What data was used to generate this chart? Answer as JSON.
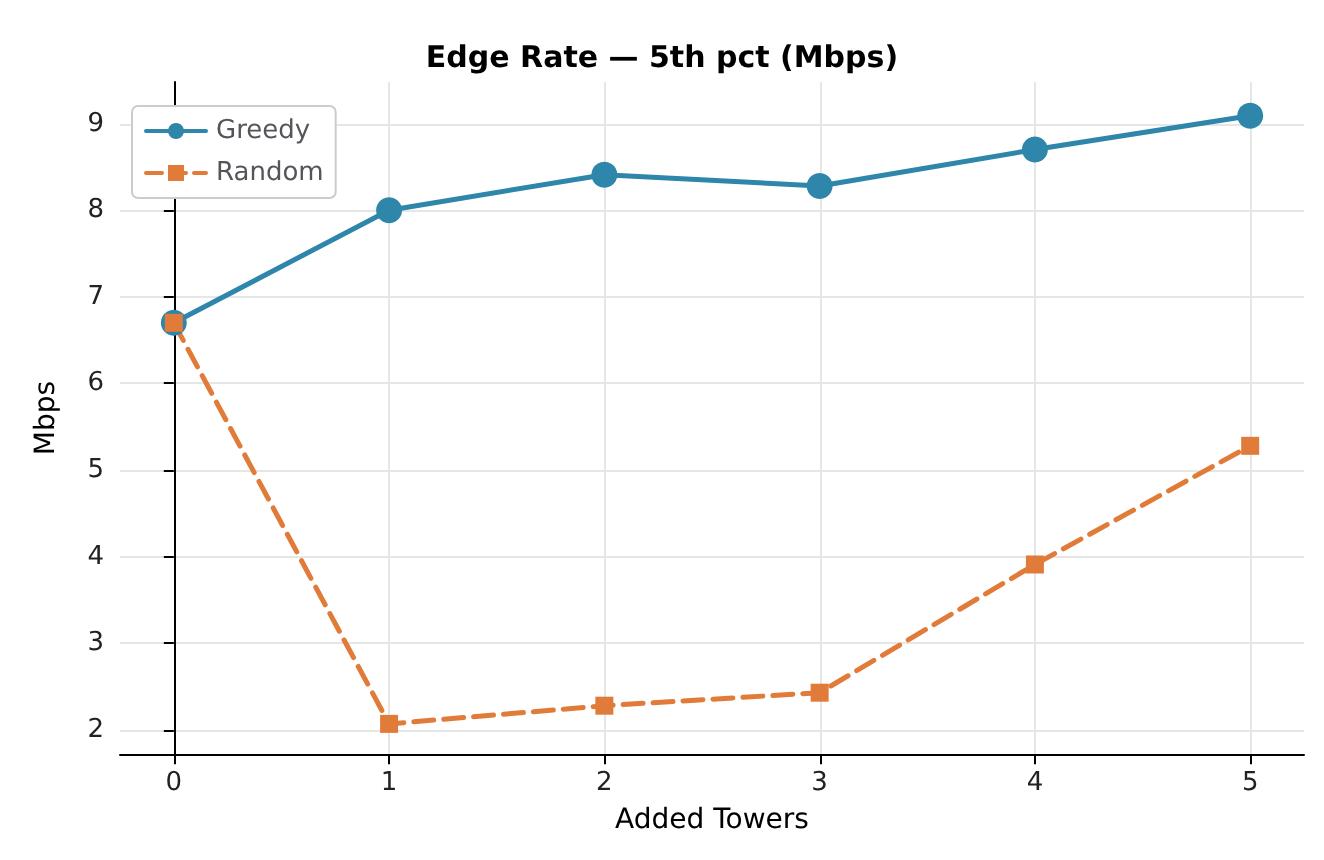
{
  "chart_data": {
    "type": "line",
    "title": "Edge Rate — 5th pct (Mbps)",
    "xlabel": "Added Towers",
    "ylabel": "Mbps",
    "x": [
      0,
      1,
      2,
      3,
      4,
      5
    ],
    "xlim": [
      -0.25,
      5.25
    ],
    "xticks": [
      0,
      1,
      2,
      3,
      4,
      5
    ],
    "ylim": [
      1.72,
      9.48
    ],
    "yticks": [
      2,
      3,
      4,
      5,
      6,
      7,
      8,
      9
    ],
    "grid": true,
    "legend": "top left",
    "series": [
      {
        "name": "Greedy",
        "color": "#2e86ab",
        "marker": "circle",
        "line_style": "solid",
        "values": [
          6.7,
          8.0,
          8.41,
          8.28,
          8.7,
          9.09
        ]
      },
      {
        "name": "Random",
        "color": "#e07b39",
        "marker": "square",
        "line_style": "dashed",
        "values": [
          6.7,
          2.07,
          2.28,
          2.43,
          3.91,
          5.28
        ]
      }
    ]
  }
}
